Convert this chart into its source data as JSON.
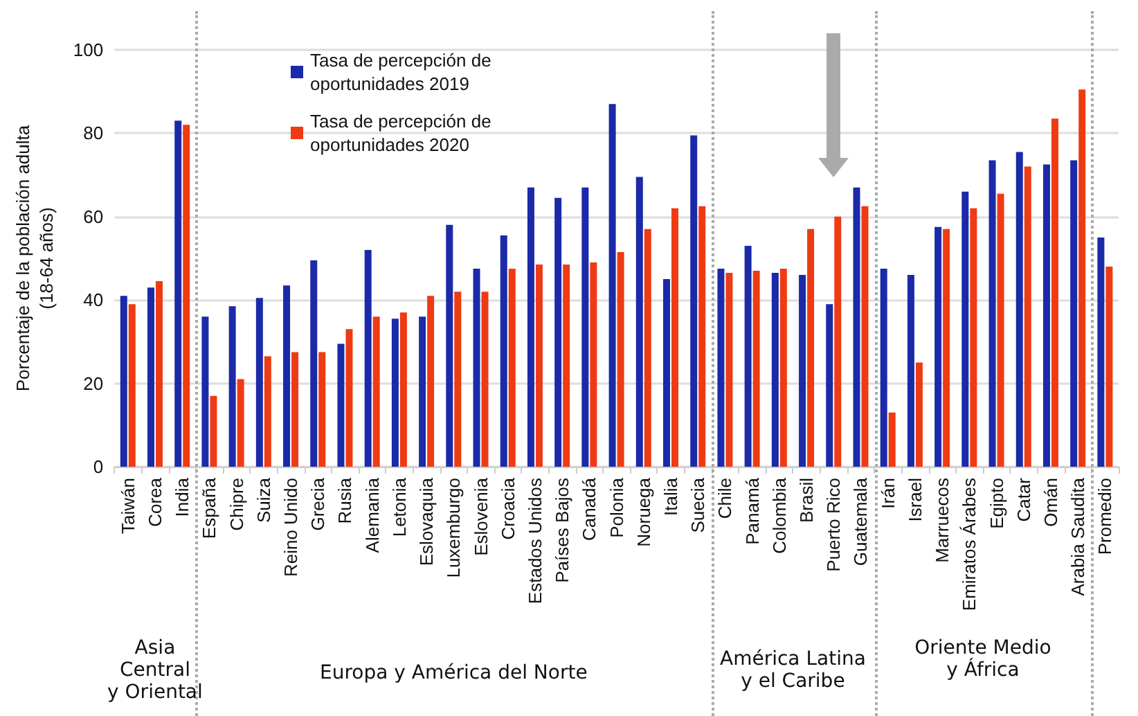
{
  "chart_data": {
    "type": "bar",
    "ylabel": "Porcentaje de la población adulta\n(18-64 años)",
    "categories": [
      "Taiwán",
      "Corea",
      "India",
      "España",
      "Chipre",
      "Suiza",
      "Reino Unido",
      "Grecia",
      "Rusia",
      "Alemania",
      "Letonia",
      "Eslovaquia",
      "Luxemburgo",
      "Eslovenia",
      "Croacia",
      "Estados Unidos",
      "Países Bajos",
      "Canadá",
      "Polonia",
      "Noruega",
      "Italia",
      "Suecia",
      "Chile",
      "Panamá",
      "Colombia",
      "Brasil",
      "Puerto Rico",
      "Guatemala",
      "Irán",
      "Israel",
      "Marruecos",
      "Emiratos Árabes",
      "Egipto",
      "Catar",
      "Omán",
      "Arabia Saudita",
      "Promedio"
    ],
    "series": [
      {
        "name": "Tasa de percepción de\noportunidades 2019",
        "color": "#1a2aa8",
        "values": [
          41,
          43,
          83,
          36,
          38.5,
          40.5,
          43.5,
          49.5,
          29.5,
          52,
          35.5,
          36,
          58,
          47.5,
          55.5,
          67,
          64.5,
          67,
          87,
          69.5,
          45,
          79.5,
          47.5,
          53,
          46.5,
          46,
          39,
          67,
          47.5,
          46,
          57.5,
          66,
          73.5,
          75.5,
          72.5,
          73.5,
          55
        ]
      },
      {
        "name": "Tasa de percepción de\noportunidades 2020",
        "color": "#ee3b14",
        "values": [
          39,
          44.5,
          82,
          17,
          21,
          26.5,
          27.5,
          27.5,
          33,
          36,
          37,
          41,
          42,
          42,
          47.5,
          48.5,
          48.5,
          49,
          51.5,
          57,
          62,
          62.5,
          46.5,
          47,
          47.5,
          57,
          60,
          62.5,
          13,
          25,
          57,
          62,
          65.5,
          72,
          83.5,
          90.5,
          48
        ]
      }
    ],
    "ylim": [
      0,
      100
    ],
    "yticks": [
      0,
      20,
      40,
      60,
      80,
      100
    ],
    "grid": "y",
    "legend": "top",
    "annotations": [
      "Asia\nCentral\ny Oriental",
      "Europa y América del Norte",
      "América Latina\ny el Caribe",
      "Oriente Medio\ny África"
    ]
  }
}
